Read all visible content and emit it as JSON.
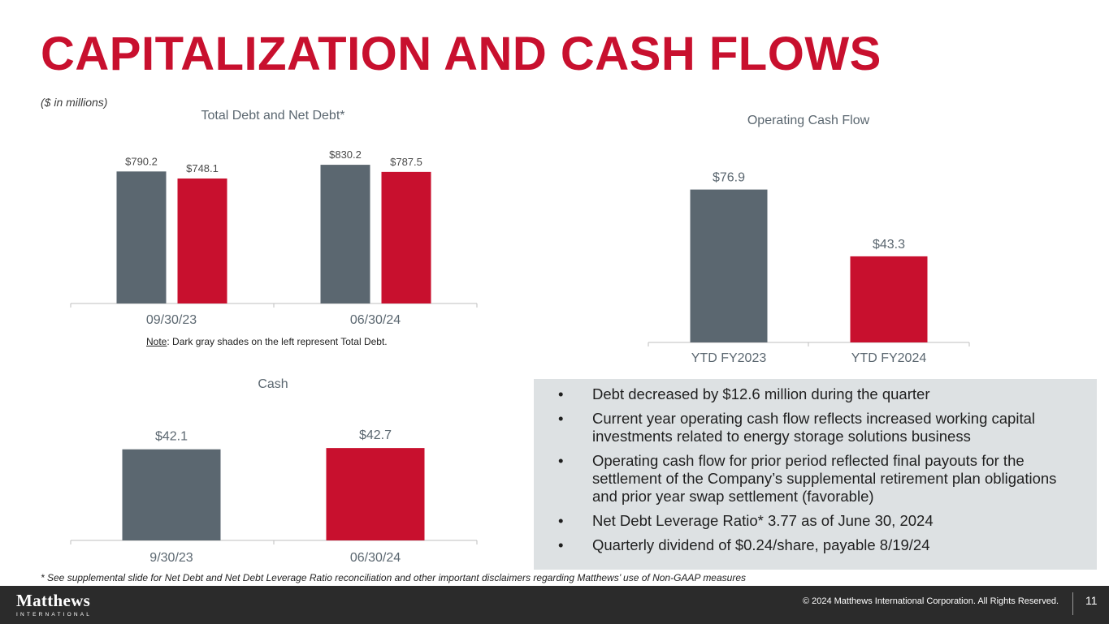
{
  "title": "CAPITALIZATION AND CASH FLOWS",
  "units_note": "($ in millions)",
  "colors": {
    "accent": "#c8102e",
    "gray_bar": "#5b6770",
    "panel": "#dde1e3",
    "footer": "#2b2b2b"
  },
  "chart_data": [
    {
      "type": "bar",
      "title": "Total Debt and Net Debt*",
      "categories": [
        "09/30/23",
        "06/30/24"
      ],
      "series": [
        {
          "values": [
            790.2,
            830.2
          ],
          "labels": [
            "$790.2",
            "$830.2"
          ],
          "color": "#5b6770"
        },
        {
          "values": [
            748.1,
            787.5
          ],
          "labels": [
            "$748.1",
            "$787.5"
          ],
          "color": "#c8102e"
        }
      ],
      "ylim": [
        0,
        850
      ]
    },
    {
      "type": "bar",
      "title": "Operating Cash Flow",
      "categories": [
        "YTD FY2023",
        "YTD FY2024"
      ],
      "values": [
        76.9,
        43.3
      ],
      "labels": [
        "$76.9",
        "$43.3"
      ],
      "colors": [
        "#5b6770",
        "#c8102e"
      ],
      "ylim": [
        0,
        80
      ]
    },
    {
      "type": "bar",
      "title": "Cash",
      "categories": [
        "9/30/23",
        "06/30/24"
      ],
      "values": [
        42.1,
        42.7
      ],
      "labels": [
        "$42.1",
        "$42.7"
      ],
      "colors": [
        "#5b6770",
        "#c8102e"
      ],
      "ylim": [
        0,
        45
      ]
    }
  ],
  "note": {
    "label": "Note",
    "text": ": Dark gray shades on the left represent Total Debt."
  },
  "bullets": [
    "Debt decreased by $12.6 million during the quarter",
    "Current year operating cash flow reflects increased working capital investments related to energy storage solutions business",
    "Operating cash flow for prior period reflected final payouts for the settlement of the Company’s supplemental retirement plan obligations and prior year swap settlement (favorable)",
    "Net Debt Leverage Ratio* 3.77 as of June 30, 2024",
    "Quarterly dividend of $0.24/share, payable 8/19/24"
  ],
  "bullet_symbol": "•",
  "footnote": "* See supplemental slide for Net Debt and Net Debt Leverage Ratio reconciliation and other important disclaimers regarding Matthews’ use of Non-GAAP measures",
  "footer": {
    "logo_name": "Matthews",
    "logo_sub": "INTERNATIONAL",
    "copyright": "© 2024 Matthews International Corporation. All Rights Reserved.",
    "page_number": "11"
  }
}
